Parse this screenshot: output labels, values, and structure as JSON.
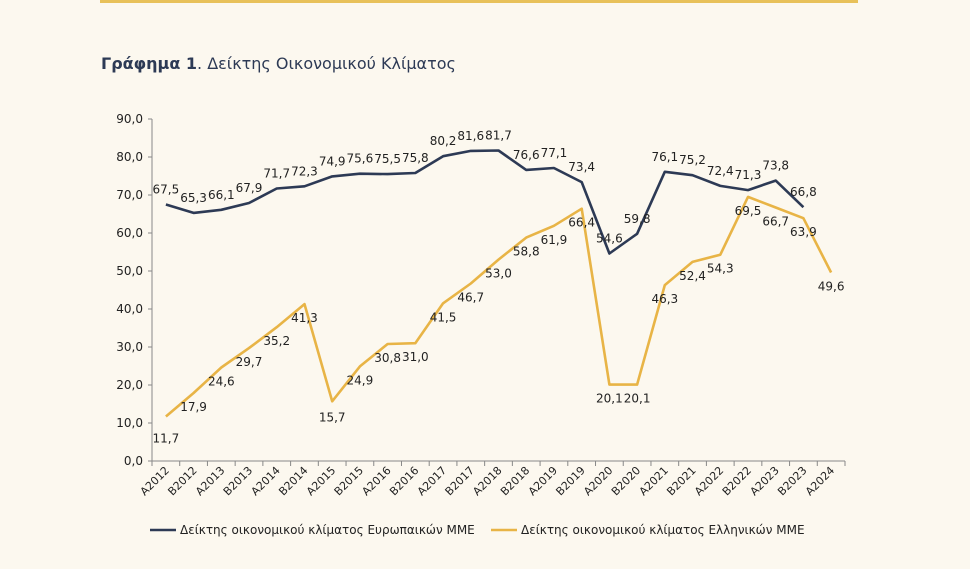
{
  "title_bold": "Γράφημα 1",
  "title_rest": ". Δείκτης Οικονομικού Κλίματος",
  "chart_data": {
    "type": "line",
    "categories": [
      "A2012",
      "B2012",
      "A2013",
      "B2013",
      "A2014",
      "B2014",
      "A2015",
      "B2015",
      "A2016",
      "B2016",
      "A2017",
      "B2017",
      "A2018",
      "B2018",
      "A2019",
      "B2019",
      "A2020",
      "B2020",
      "A2021",
      "B2021",
      "A2022",
      "B2022",
      "A2023",
      "B2023",
      "A2024"
    ],
    "ylim": [
      0,
      90
    ],
    "yticks": [
      "0,0",
      "10,0",
      "20,0",
      "30,0",
      "40,0",
      "50,0",
      "60,0",
      "70,0",
      "80,0",
      "90,0"
    ],
    "legend_position": "bottom",
    "series": [
      {
        "name": "Δείκτης οικονομικού κλίματος Ευρωπαικών ΜΜΕ",
        "color": "#2d3a55",
        "values": [
          67.5,
          65.3,
          66.1,
          67.9,
          71.7,
          72.3,
          74.9,
          75.6,
          75.5,
          75.8,
          80.2,
          81.6,
          81.7,
          76.6,
          77.1,
          73.4,
          54.6,
          59.8,
          76.1,
          75.2,
          72.4,
          71.3,
          73.8,
          66.8,
          null
        ],
        "labels": [
          "67,5",
          "65,3",
          "66,1",
          "67,9",
          "71,7",
          "72,3",
          "74,9",
          "75,6",
          "75,5",
          "75,8",
          "80,2",
          "81,6",
          "81,7",
          "76,6",
          "77,1",
          "73,4",
          "54,6",
          "59,8",
          "76,1",
          "75,2",
          "72,4",
          "71,3",
          "73,8",
          "66,8",
          null
        ]
      },
      {
        "name": "Δείκτης οικονομικού κλίματος Ελληνικών ΜΜΕ",
        "color": "#e8b446",
        "values": [
          11.7,
          17.9,
          24.6,
          29.7,
          35.2,
          41.3,
          15.7,
          24.9,
          30.8,
          31.0,
          41.5,
          46.7,
          53.0,
          58.8,
          61.9,
          66.4,
          20.1,
          20.1,
          46.3,
          52.4,
          54.3,
          69.5,
          66.7,
          63.9,
          49.6
        ],
        "labels": [
          "11,7",
          "17,9",
          "24,6",
          "29,7",
          "35,2",
          "41,3",
          "15,7",
          "24,9",
          "30,8",
          "31,0",
          "41,5",
          "46,7",
          "53,0",
          "58,8",
          "61,9",
          "66,4",
          "20,1",
          "20,1",
          "46,3",
          "52,4",
          "54,3",
          "69,5",
          "66,7",
          "63,9",
          "49,6"
        ]
      }
    ]
  }
}
